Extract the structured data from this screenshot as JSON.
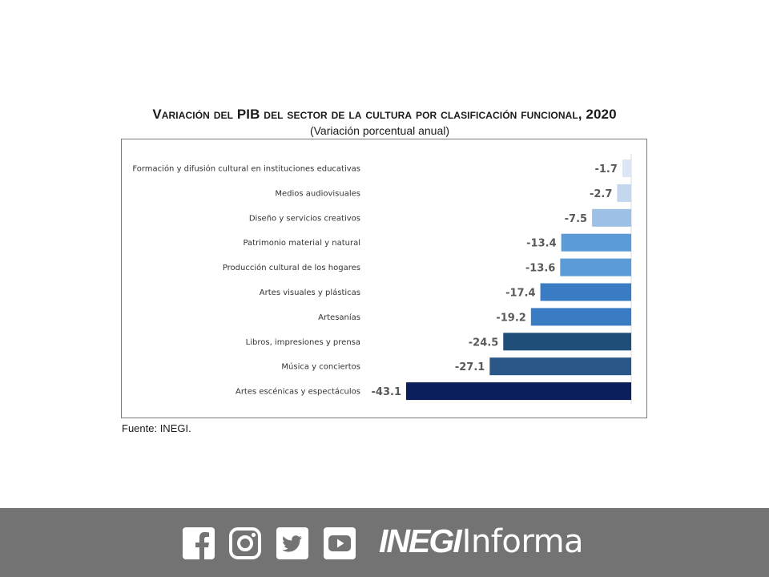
{
  "title": "Variación del PIB del sector de la cultura por clasificación funcional, 2020",
  "subtitle": "(Variación porcentual anual)",
  "source": "Fuente: INEGI.",
  "chart_data": {
    "type": "bar",
    "orientation": "horizontal",
    "title": "Variación del PIB del sector de la cultura por clasificación funcional, 2020",
    "subtitle": "(Variación porcentual anual)",
    "xlabel": "",
    "ylabel": "",
    "xlim": [
      -45,
      0
    ],
    "grid": false,
    "categories": [
      "Formación y difusión cultural en instituciones educativas",
      "Medios audiovisuales",
      "Diseño y servicios creativos",
      "Patrimonio material y natural",
      "Producción cultural de los hogares",
      "Artes visuales y plásticas",
      "Artesanías",
      "Libros, impresiones y prensa",
      "Música y conciertos",
      "Artes escénicas y espectáculos"
    ],
    "values": [
      -1.7,
      -2.7,
      -7.5,
      -13.4,
      -13.6,
      -17.4,
      -19.2,
      -24.5,
      -27.1,
      -43.1
    ],
    "value_labels": [
      "-1.7",
      "-2.7",
      "-7.5",
      "-13.4",
      "-13.6",
      "-17.4",
      "-19.2",
      "-24.5",
      "-27.1",
      "-43.1"
    ],
    "bar_colors": [
      "#dce6f4",
      "#c3d7ef",
      "#9dc0e6",
      "#5b9bd8",
      "#5b9bd8",
      "#3a7cc4",
      "#3a7cc4",
      "#1f4e79",
      "#2a5788",
      "#0a1f5c"
    ]
  },
  "footer": {
    "icons": [
      "facebook-icon",
      "instagram-icon",
      "twitter-icon",
      "youtube-icon"
    ],
    "brand_bold": "INEGI",
    "brand_light": "Informa",
    "background": "#737373"
  }
}
